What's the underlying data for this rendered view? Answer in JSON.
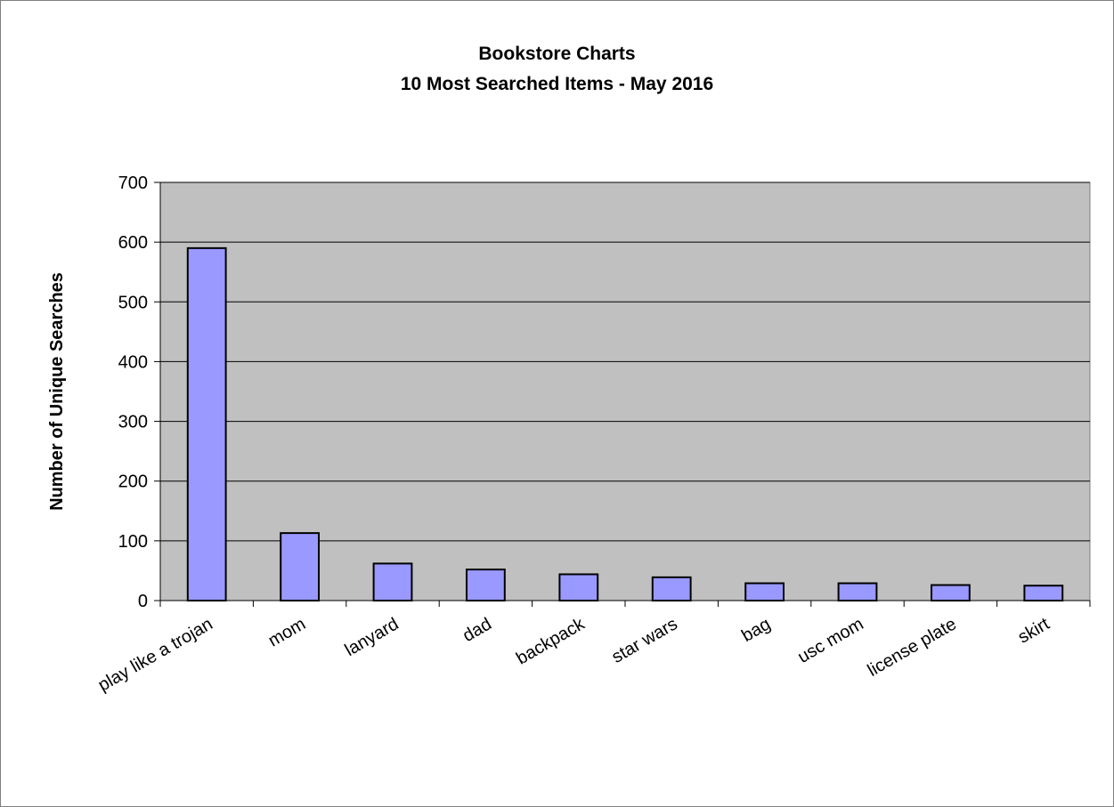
{
  "chart_data": {
    "type": "bar",
    "title": "Bookstore Charts",
    "subtitle": "10 Most Searched Items - May 2016",
    "xlabel": "",
    "ylabel": "Number of Unique Searches",
    "categories": [
      "play like a trojan",
      "mom",
      "lanyard",
      "dad",
      "backpack",
      "star wars",
      "bag",
      "usc mom",
      "license plate",
      "skirt"
    ],
    "values": [
      590,
      113,
      62,
      52,
      44,
      39,
      29,
      29,
      26,
      25
    ],
    "ylim": [
      0,
      700
    ],
    "yticks": [
      0,
      100,
      200,
      300,
      400,
      500,
      600,
      700
    ],
    "grid": true,
    "legend": "none",
    "colors": {
      "bar_fill": "#9999ff",
      "bar_stroke": "#000000",
      "plot_background": "#c0c0c0",
      "gridline": "#000000"
    }
  }
}
